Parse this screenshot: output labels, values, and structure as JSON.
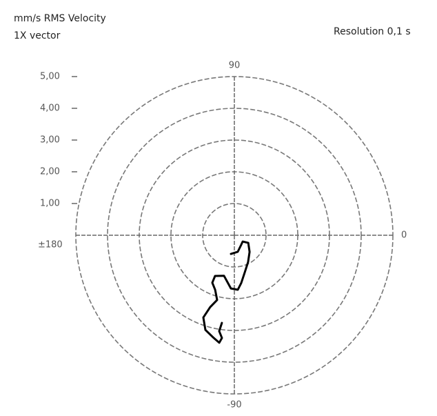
{
  "chart_data": {
    "type": "polar",
    "title": "mm/s RMS Velocity",
    "subtitle": "1X vector",
    "annotation": "Resolution 0,1 s",
    "rlim": [
      0,
      5
    ],
    "rticks": [
      {
        "value": 1,
        "label": "1,00"
      },
      {
        "value": 2,
        "label": "2,00"
      },
      {
        "value": 3,
        "label": "3,00"
      },
      {
        "value": 4,
        "label": "4,00"
      },
      {
        "value": 5,
        "label": "5,00"
      }
    ],
    "angle_ticks": [
      0,
      90,
      {
        "value": 180,
        "label": "±180"
      },
      -90
    ],
    "grid": true,
    "series": [
      {
        "color": "#000000",
        "r": [
          0.6,
          0.53,
          0.37,
          0.33,
          0.5,
          0.71,
          0.95,
          1.22,
          1.52,
          1.72,
          1.68,
          1.32,
          1.42,
          1.65,
          1.82,
          2.11,
          2.39,
          2.77,
          3.12,
          3.3,
          3.42,
          3.26,
          3.06,
          2.79
        ],
        "theta": [
          -100.5,
          -78.2,
          -54.5,
          -36.9,
          -28.8,
          -47.5,
          -62.9,
          -74.5,
          -81.8,
          -86.4,
          -93.7,
          -104.3,
          -115.4,
          -114.9,
          -109.5,
          -104.9,
          -108.6,
          -110.7,
          -107.0,
          -101.4,
          -98.0,
          -96.9,
          -99.0,
          -98.1
        ]
      }
    ]
  }
}
